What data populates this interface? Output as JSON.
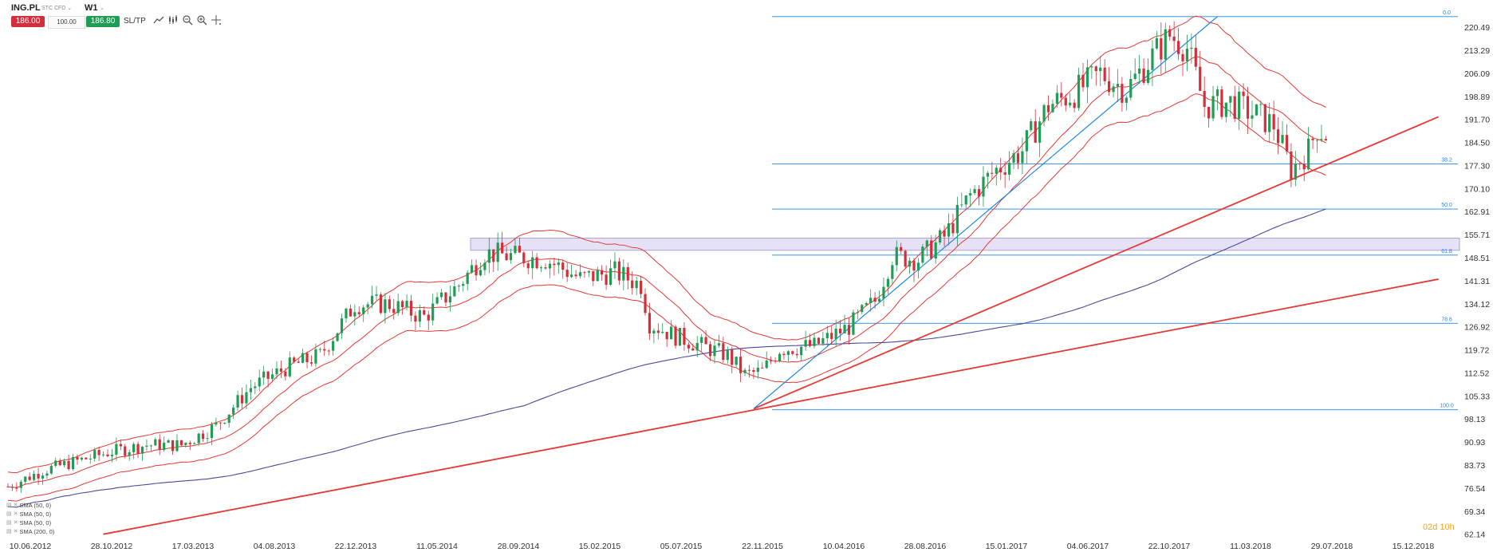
{
  "toolbar": {
    "symbol": "ING.PL",
    "instrument_type": "STC CFD",
    "timeframe": "W1",
    "sell_price": "186.00",
    "volume": "100.00",
    "buy_price": "186.80",
    "sltp_label": "SL/TP"
  },
  "icons": [
    "line-chart-icon",
    "candles-icon",
    "zoom-out-icon",
    "zoom-in-icon",
    "crosshair-icon"
  ],
  "colors": {
    "bull": "#1f9d55",
    "bear": "#d32f3a",
    "trend_line": "#e53935",
    "fib_line": "#1e88e5",
    "sma200": "#4a4a9a",
    "zone_fill": "#e6e1f5",
    "zone_border": "#9c8fd0",
    "countdown": "#f5a623"
  },
  "countdown": "02d 10h",
  "indicators": [
    "SMA (50, 0)",
    "SMA (50, 0)",
    "SMA (50, 0)",
    "SMA (200, 0)"
  ],
  "chart_data": {
    "type": "candlestick",
    "y_ticks": [
      220.49,
      213.29,
      206.09,
      198.89,
      191.7,
      184.5,
      177.3,
      170.1,
      162.91,
      155.71,
      148.51,
      141.31,
      134.12,
      126.92,
      119.72,
      112.52,
      105.33,
      98.13,
      90.93,
      83.73,
      76.54,
      69.34,
      62.14
    ],
    "y_tick_labels": [
      "220.49",
      "213.29",
      "206.09",
      "198.89",
      "191.70",
      "184.50",
      "177.30",
      "170.10",
      "162.91",
      "155.71",
      "148.51",
      "141.31",
      "134.12",
      "126.92",
      "119.72",
      "112.52",
      "105.33",
      "98.13",
      "90.93",
      "83.73",
      "76.54",
      "69.34",
      "62.14"
    ],
    "x_tick_labels": [
      "10.06.2012",
      "28.10.2012",
      "17.03.2013",
      "04.08.2013",
      "22.12.2013",
      "11.05.2014",
      "28.09.2014",
      "15.02.2015",
      "05.07.2015",
      "22.11.2015",
      "10.04.2016",
      "28.08.2016",
      "15.01.2017",
      "04.06.2017",
      "22.10.2017",
      "11.03.2018",
      "29.07.2018",
      "15.12.2018"
    ],
    "ylim": [
      62.14,
      224.0
    ],
    "week_span": [
      0,
      333
    ],
    "fibonacci": [
      {
        "label": "0.0",
        "price": 223.8
      },
      {
        "label": "38.2",
        "price": 177.8
      },
      {
        "label": "50.0",
        "price": 163.7
      },
      {
        "label": "61.8",
        "price": 149.3
      },
      {
        "label": "78.6",
        "price": 128.0
      },
      {
        "label": "100.0",
        "price": 101.0
      }
    ],
    "zone": {
      "from_price": 150.8,
      "to_price": 154.6
    },
    "trend_lines": [
      {
        "name": "lower-red",
        "from": {
          "week": 22,
          "price": 62.14
        },
        "to": {
          "week": 330,
          "price": 141.8
        }
      },
      {
        "name": "upper-red",
        "from": {
          "week": 172,
          "price": 101.3
        },
        "to": {
          "week": 330,
          "price": 192.5
        }
      },
      {
        "name": "blue-rise",
        "from": {
          "week": 172,
          "price": 101.3
        },
        "to": {
          "week": 279,
          "price": 223.8
        }
      }
    ],
    "price_path": [
      [
        0,
        77
      ],
      [
        8,
        82
      ],
      [
        16,
        85
      ],
      [
        24,
        88
      ],
      [
        32,
        90
      ],
      [
        40,
        90
      ],
      [
        48,
        96
      ],
      [
        56,
        108
      ],
      [
        64,
        114
      ],
      [
        72,
        118
      ],
      [
        80,
        134
      ],
      [
        88,
        134
      ],
      [
        96,
        130
      ],
      [
        104,
        140
      ],
      [
        110,
        150
      ],
      [
        116,
        149
      ],
      [
        124,
        148
      ],
      [
        132,
        142
      ],
      [
        140,
        144
      ],
      [
        146,
        140
      ],
      [
        148,
        128
      ],
      [
        154,
        124
      ],
      [
        160,
        121
      ],
      [
        166,
        118
      ],
      [
        170,
        112
      ],
      [
        174,
        113
      ],
      [
        178,
        120
      ],
      [
        186,
        121
      ],
      [
        194,
        127
      ],
      [
        200,
        135
      ],
      [
        204,
        149
      ],
      [
        210,
        148
      ],
      [
        216,
        155
      ],
      [
        222,
        168
      ],
      [
        228,
        176
      ],
      [
        234,
        182
      ],
      [
        240,
        196
      ],
      [
        246,
        200
      ],
      [
        252,
        206
      ],
      [
        258,
        201
      ],
      [
        262,
        208
      ],
      [
        268,
        218
      ],
      [
        272,
        214
      ],
      [
        276,
        196
      ],
      [
        282,
        197
      ],
      [
        288,
        193
      ],
      [
        292,
        190
      ],
      [
        296,
        176
      ],
      [
        300,
        182
      ],
      [
        302,
        189
      ],
      [
        304,
        187
      ]
    ]
  }
}
